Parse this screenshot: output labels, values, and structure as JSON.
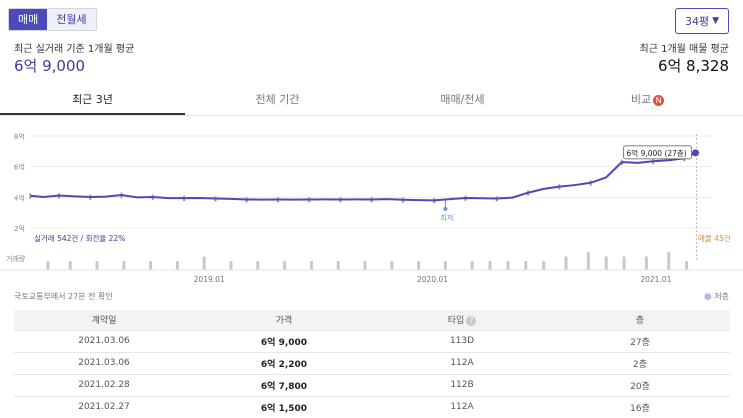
{
  "deal_types": [
    {
      "label": "매매",
      "active": true
    },
    {
      "label": "전월세",
      "active": false
    }
  ],
  "area_select": {
    "value": "34평"
  },
  "summary": {
    "left_label": "최근 실거래 기준 1개월 평균",
    "left_value": "6억 9,000",
    "right_label": "최근 1개월 매물 평균",
    "right_value": "6억 8,328"
  },
  "tabs": [
    {
      "label": "최근 3년",
      "active": true
    },
    {
      "label": "전체 기간",
      "active": false
    },
    {
      "label": "매매/전세",
      "active": false
    },
    {
      "label": "비교",
      "active": false,
      "badge": "N"
    }
  ],
  "chart_data": {
    "type": "line",
    "ylim": [
      2,
      8
    ],
    "y_ticks": [
      "8억",
      "6억",
      "4억",
      "2억"
    ],
    "y_tick_values": [
      8,
      6,
      4,
      2
    ],
    "x_ticks": [
      "2019.01",
      "2020.01",
      "2021.01"
    ],
    "x_tick_values": [
      2019.0,
      2020.0,
      2021.0
    ],
    "xlim": [
      2018.2,
      2021.2
    ],
    "series": [
      {
        "x": [
          2018.2,
          2018.26,
          2018.33,
          2018.4,
          2018.47,
          2018.54,
          2018.61,
          2018.68,
          2018.75,
          2018.82,
          2018.89,
          2018.96,
          2019.03,
          2019.1,
          2019.17,
          2019.24,
          2019.31,
          2019.38,
          2019.45,
          2019.52,
          2019.59,
          2019.66,
          2019.73,
          2019.8,
          2019.87,
          2019.94,
          2020.01,
          2020.08,
          2020.15,
          2020.22,
          2020.29,
          2020.36,
          2020.43,
          2020.5,
          2020.57,
          2020.64,
          2020.71,
          2020.78,
          2020.85,
          2020.92,
          2020.99,
          2021.06,
          2021.13,
          2021.18
        ],
        "values": [
          4.1,
          4.02,
          4.12,
          4.06,
          4.02,
          4.05,
          4.15,
          4.0,
          4.02,
          3.95,
          3.95,
          3.96,
          3.92,
          3.9,
          3.86,
          3.85,
          3.86,
          3.85,
          3.86,
          3.87,
          3.86,
          3.87,
          3.86,
          3.88,
          3.84,
          3.82,
          3.8,
          3.88,
          3.96,
          3.94,
          3.92,
          3.98,
          4.3,
          4.55,
          4.7,
          4.8,
          4.95,
          5.3,
          6.3,
          6.25,
          6.35,
          6.42,
          6.55,
          6.9
        ]
      }
    ],
    "annotations": {
      "min_label": "최저",
      "min_point": {
        "x": 2020.06,
        "y": 3.25
      },
      "tooltip": "6억 9,000 (27층)",
      "tooltip_point": {
        "x": 2021.18,
        "y": 6.9
      },
      "left_footer": "실거래 542건 / 회전율 22%",
      "right_footer": "매물 45건",
      "volume_label": "거래량"
    },
    "volume_x": [
      2018.28,
      2018.38,
      2018.5,
      2018.62,
      2018.74,
      2018.86,
      2018.98,
      2019.1,
      2019.22,
      2019.34,
      2019.46,
      2019.58,
      2019.7,
      2019.82,
      2019.94,
      2020.06,
      2020.18,
      2020.26,
      2020.34,
      2020.42,
      2020.5,
      2020.6,
      2020.7,
      2020.78,
      2020.86,
      2020.96,
      2021.06,
      2021.14
    ],
    "volume_values": [
      2,
      2,
      2,
      2,
      2,
      2,
      3,
      2,
      2,
      2,
      2,
      2,
      2,
      2,
      2,
      2,
      2,
      2,
      2,
      2,
      2,
      3,
      4,
      3,
      3,
      3,
      4,
      2
    ],
    "colors": {
      "line": "#4a4ab8",
      "accent": "#e5503d"
    }
  },
  "table": {
    "source": "국토교통부에서 27분 전 확인",
    "legend": "저층",
    "columns": [
      "계약일",
      "가격",
      "타입",
      "층"
    ],
    "rows": [
      [
        "2021.03.06",
        "6억 9,000",
        "113D",
        "27층"
      ],
      [
        "2021.03.06",
        "6억 2,200",
        "112A",
        "2층"
      ],
      [
        "2021.02.28",
        "6억 7,800",
        "112B",
        "20층"
      ],
      [
        "2021.02.27",
        "6억 1,500",
        "112A",
        "16층"
      ]
    ]
  }
}
